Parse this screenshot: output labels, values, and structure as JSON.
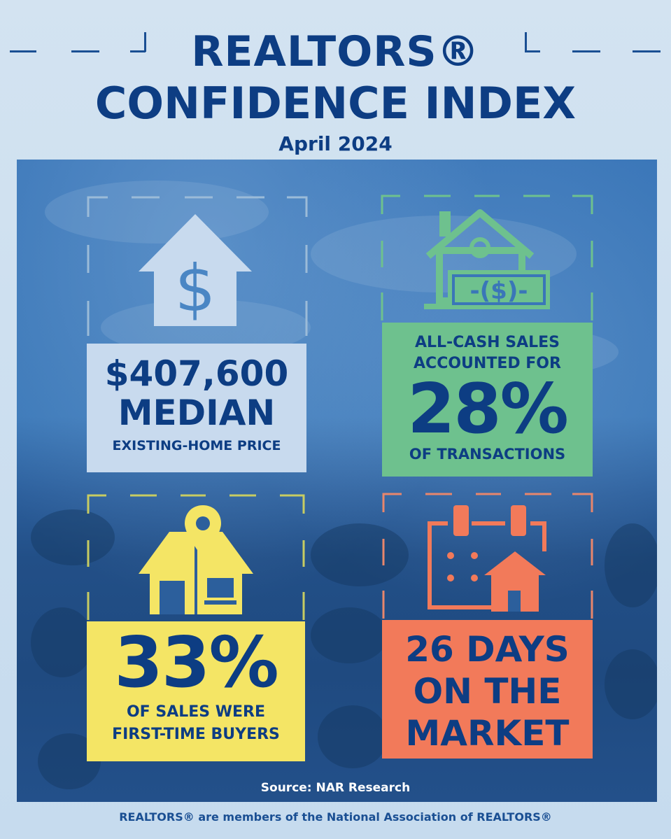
{
  "header": {
    "title_line1": "REALTORS®",
    "title_line2": "CONFIDENCE INDEX",
    "subtitle": "April 2024"
  },
  "stats": [
    {
      "value": "$407,600",
      "label": "MEDIAN",
      "caption": "EXISTING-HOME PRICE",
      "icon": "house-dollar-icon",
      "color": "#c8daee"
    },
    {
      "lead": "ALL-CASH SALES ACCOUNTED FOR",
      "value": "28%",
      "caption": "OF TRANSACTIONS",
      "icon": "house-cash-icon",
      "color": "#6ec18e"
    },
    {
      "value": "33%",
      "caption1": "OF SALES WERE",
      "caption2": "FIRST-TIME BUYERS",
      "icon": "house-location-pin-icon",
      "color": "#f4e565"
    },
    {
      "line1": "26 DAYS",
      "line2": "ON THE",
      "line3": "MARKET",
      "icon": "calendar-house-icon",
      "color": "#f27a5a"
    }
  ],
  "source": "Source: NAR Research",
  "footer": "REALTORS® are members of the National Association of REALTORS®",
  "colors": {
    "navy": "#0d3d83",
    "background": "#c6dbee",
    "photo_blue": "#3a76b8"
  }
}
